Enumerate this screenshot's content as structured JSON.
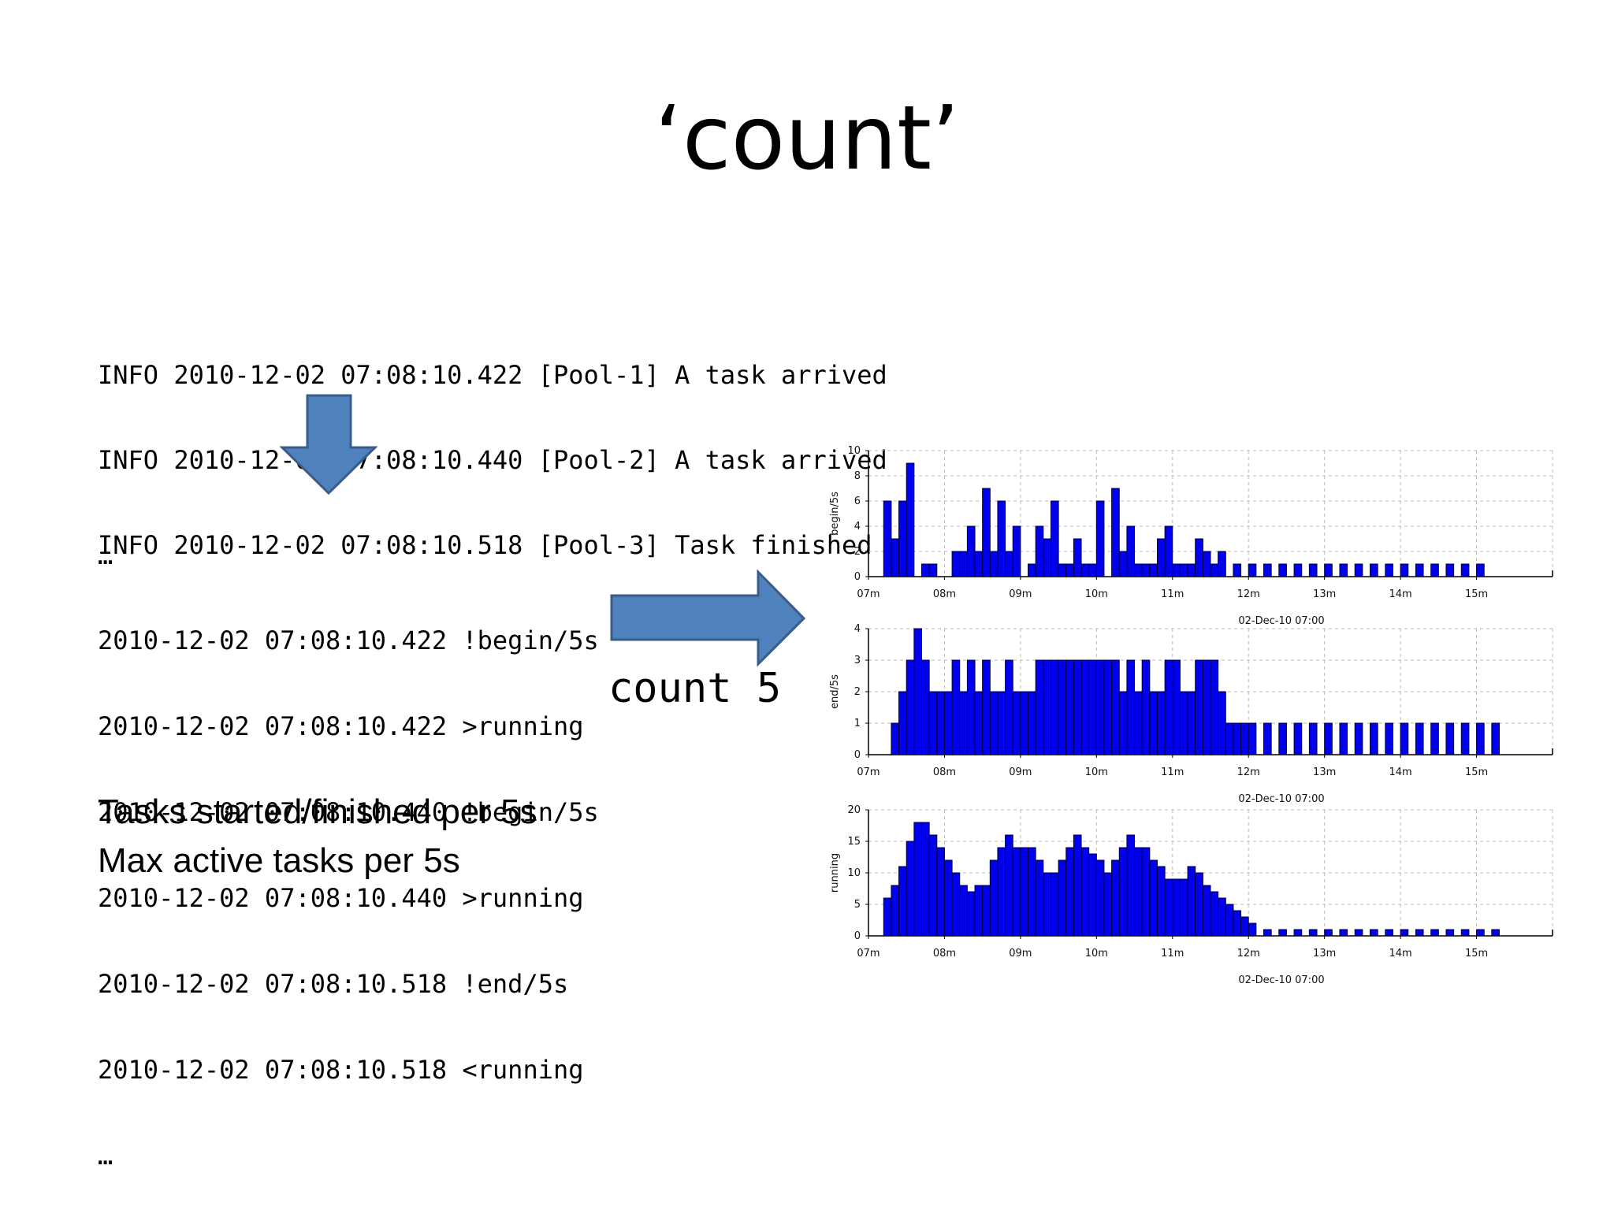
{
  "slide": {
    "title": "‘count’",
    "log_input": [
      "INFO 2010-12-02 07:08:10.422 [Pool-1] A task arrived",
      "INFO 2010-12-02 07:08:10.440 [Pool-2] A task arrived",
      "INFO 2010-12-02 07:08:10.518 [Pool-3] Task finished"
    ],
    "log_output": [
      "…",
      "2010-12-02 07:08:10.422 !begin/5s",
      "2010-12-02 07:08:10.422 >running",
      "2010-12-02 07:08:10.440 !begin/5s",
      "2010-12-02 07:08:10.440 >running",
      "2010-12-02 07:08:10.518 !end/5s",
      "2010-12-02 07:08:10.518 <running",
      "…"
    ],
    "count_label": "count 5",
    "caption_lines": [
      "Tasks started/finished per 5s",
      "Max active tasks per 5s"
    ],
    "arrow_color": "#4f81bd",
    "arrow_border": "#385d8a"
  },
  "chart_data": [
    {
      "type": "bar",
      "ylabel": "begin/5s",
      "xlabel": "02-Dec-10 07:00",
      "ylim": [
        0,
        10
      ],
      "yticks": [
        0,
        2,
        4,
        6,
        8,
        10
      ],
      "xticks": [
        "07m",
        "08m",
        "09m",
        "10m",
        "11m",
        "12m",
        "13m",
        "14m",
        "15m"
      ],
      "grid": true,
      "bar_color": "#0000ee",
      "x_minutes": [
        7.2,
        7.3,
        7.4,
        7.5,
        7.6,
        7.7,
        7.8,
        7.9,
        8.0,
        8.1,
        8.2,
        8.3,
        8.4,
        8.5,
        8.6,
        8.7,
        8.8,
        8.9,
        9.0,
        9.1,
        9.2,
        9.3,
        9.4,
        9.5,
        9.6,
        9.7,
        9.8,
        9.9,
        10.0,
        10.1,
        10.2,
        10.3,
        10.4,
        10.5,
        10.6,
        10.7,
        10.8,
        10.9,
        11.0,
        11.1,
        11.2,
        11.3,
        11.4,
        11.5,
        11.6,
        11.8,
        12.0,
        12.2,
        12.4,
        12.6,
        12.8,
        13.0,
        13.2,
        13.4,
        13.6,
        13.8,
        14.0,
        14.2,
        14.4,
        14.6,
        14.8,
        15.0
      ],
      "values": [
        6,
        3,
        6,
        9,
        0,
        1,
        1,
        0,
        0,
        2,
        2,
        4,
        2,
        7,
        2,
        6,
        2,
        4,
        0,
        1,
        4,
        3,
        6,
        1,
        1,
        3,
        1,
        1,
        6,
        0,
        7,
        2,
        4,
        1,
        1,
        1,
        3,
        4,
        1,
        1,
        1,
        3,
        2,
        1,
        2,
        1,
        1,
        1,
        1,
        1,
        1,
        1,
        1,
        1,
        1,
        1,
        1,
        1,
        1,
        1,
        1,
        1
      ]
    },
    {
      "type": "bar",
      "ylabel": "end/5s",
      "xlabel": "02-Dec-10 07:00",
      "ylim": [
        0,
        4
      ],
      "yticks": [
        0,
        1,
        2,
        3,
        4
      ],
      "xticks": [
        "07m",
        "08m",
        "09m",
        "10m",
        "11m",
        "12m",
        "13m",
        "14m",
        "15m"
      ],
      "grid": true,
      "bar_color": "#0000ee",
      "x_minutes": [
        7.3,
        7.4,
        7.5,
        7.6,
        7.7,
        7.8,
        7.9,
        8.0,
        8.1,
        8.2,
        8.3,
        8.4,
        8.5,
        8.6,
        8.7,
        8.8,
        8.9,
        9.0,
        9.1,
        9.2,
        9.3,
        9.4,
        9.5,
        9.6,
        9.7,
        9.8,
        9.9,
        10.0,
        10.1,
        10.2,
        10.3,
        10.4,
        10.5,
        10.6,
        10.7,
        10.8,
        10.9,
        11.0,
        11.1,
        11.2,
        11.3,
        11.4,
        11.5,
        11.6,
        11.7,
        11.8,
        11.9,
        12.0,
        12.2,
        12.4,
        12.6,
        12.8,
        13.0,
        13.2,
        13.4,
        13.6,
        13.8,
        14.0,
        14.2,
        14.4,
        14.6,
        14.8,
        15.0,
        15.2
      ],
      "values": [
        1,
        2,
        3,
        4,
        3,
        2,
        2,
        2,
        3,
        2,
        3,
        2,
        3,
        2,
        2,
        3,
        2,
        2,
        2,
        3,
        3,
        3,
        3,
        3,
        3,
        3,
        3,
        3,
        3,
        3,
        2,
        3,
        2,
        3,
        2,
        2,
        3,
        3,
        2,
        2,
        3,
        3,
        3,
        2,
        1,
        1,
        1,
        1,
        1,
        1,
        1,
        1,
        1,
        1,
        1,
        1,
        1,
        1,
        1,
        1,
        1,
        1,
        1,
        1
      ]
    },
    {
      "type": "bar",
      "ylabel": "running",
      "xlabel": "02-Dec-10 07:00",
      "ylim": [
        0,
        20
      ],
      "yticks": [
        0,
        5,
        10,
        15,
        20
      ],
      "xticks": [
        "07m",
        "08m",
        "09m",
        "10m",
        "11m",
        "12m",
        "13m",
        "14m",
        "15m"
      ],
      "grid": true,
      "bar_color": "#0000ee",
      "x_minutes": [
        7.2,
        7.3,
        7.4,
        7.5,
        7.6,
        7.7,
        7.8,
        7.9,
        8.0,
        8.1,
        8.2,
        8.3,
        8.4,
        8.5,
        8.6,
        8.7,
        8.8,
        8.9,
        9.0,
        9.1,
        9.2,
        9.3,
        9.4,
        9.5,
        9.6,
        9.7,
        9.8,
        9.9,
        10.0,
        10.1,
        10.2,
        10.3,
        10.4,
        10.5,
        10.6,
        10.7,
        10.8,
        10.9,
        11.0,
        11.1,
        11.2,
        11.3,
        11.4,
        11.5,
        11.6,
        11.7,
        11.8,
        11.9,
        12.0,
        12.2,
        12.4,
        12.6,
        12.8,
        13.0,
        13.2,
        13.4,
        13.6,
        13.8,
        14.0,
        14.2,
        14.4,
        14.6,
        14.8,
        15.0,
        15.2
      ],
      "values": [
        6,
        8,
        11,
        15,
        18,
        18,
        16,
        14,
        12,
        10,
        8,
        7,
        8,
        8,
        12,
        14,
        16,
        14,
        14,
        14,
        12,
        10,
        10,
        12,
        14,
        16,
        14,
        13,
        12,
        10,
        12,
        14,
        16,
        14,
        14,
        12,
        11,
        9,
        9,
        9,
        11,
        10,
        8,
        7,
        6,
        5,
        4,
        3,
        2,
        1,
        1,
        1,
        1,
        1,
        1,
        1,
        1,
        1,
        1,
        1,
        1,
        1,
        1,
        1,
        1
      ]
    }
  ]
}
